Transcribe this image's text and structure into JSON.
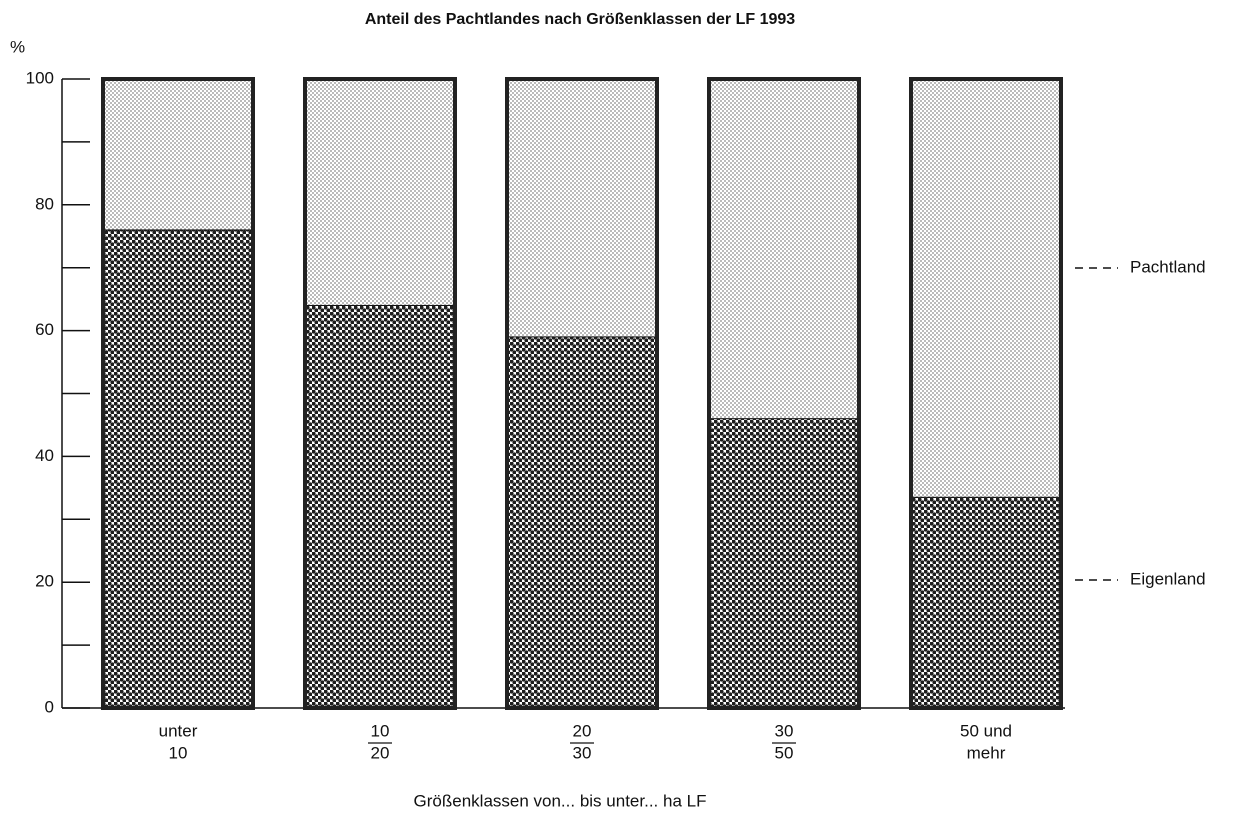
{
  "chart_data": {
    "type": "stacked_bar",
    "title": "Anteil des Pachtlandes nach Größenklassen der LF 1993",
    "y_label": "%",
    "x_label": "Größenklassen von... bis unter... ha LF",
    "categories": [
      [
        "unter",
        "10"
      ],
      [
        "10",
        "20"
      ],
      [
        "20",
        "30"
      ],
      [
        "30",
        "50"
      ],
      [
        "50 und",
        "mehr"
      ]
    ],
    "series": [
      {
        "name": "Eigenland",
        "color": "#1e1e1e",
        "values": [
          76,
          64,
          59,
          46,
          33.5
        ]
      },
      {
        "name": "Pachtland",
        "color": "#8a8a8a",
        "values": [
          24,
          36,
          41,
          54,
          66.5
        ]
      }
    ],
    "ylim": [
      0,
      100
    ],
    "yticks": [
      0,
      20,
      40,
      60,
      80,
      100
    ],
    "yminorticks": [
      10,
      30,
      50,
      70,
      90
    ]
  }
}
